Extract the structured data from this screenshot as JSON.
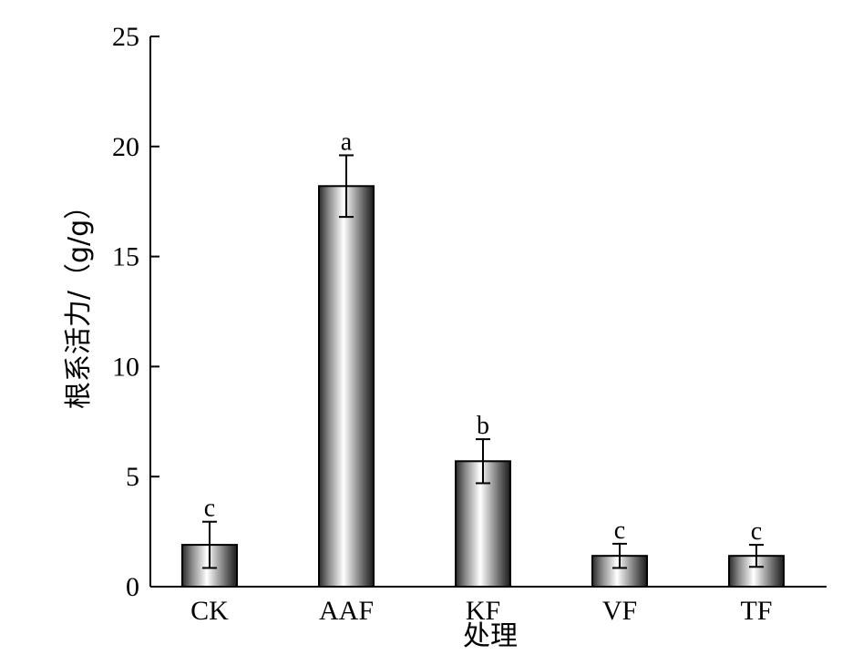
{
  "chart_data": {
    "type": "bar",
    "categories": [
      "CK",
      "AAF",
      "KF",
      "VF",
      "TF"
    ],
    "values": [
      1.9,
      18.2,
      5.7,
      1.4,
      1.4
    ],
    "errors": [
      1.05,
      1.4,
      1.0,
      0.55,
      0.5
    ],
    "significance": [
      "c",
      "a",
      "b",
      "c",
      "c"
    ],
    "xlabel": "处理",
    "ylabel": "根系活力/（g/g）",
    "ylim": [
      0,
      25
    ],
    "yticks": [
      0,
      5,
      10,
      15,
      20,
      25
    ],
    "ytick_labels": [
      "0",
      "5",
      "10",
      "15",
      "20",
      "25"
    ],
    "grid": false,
    "bar_fill": "metallic-gradient",
    "colors": {
      "bar_light": "#ffffff",
      "bar_dark": "#1a1a1a",
      "axis": "#000000"
    }
  }
}
